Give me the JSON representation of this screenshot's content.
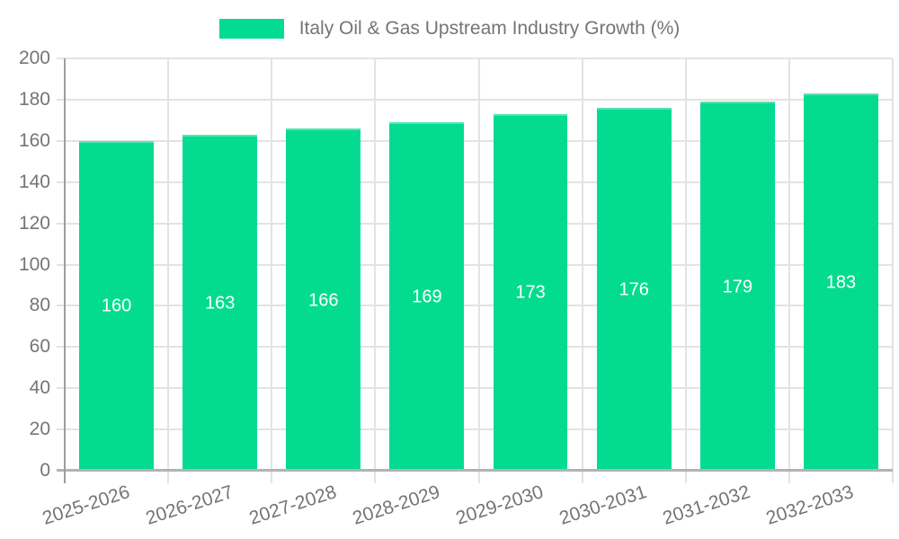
{
  "legend": {
    "label": "Italy Oil & Gas Upstream Industry Growth (%)"
  },
  "colors": {
    "bar": "#03DC90",
    "bar_top_edge": "#55E6AF",
    "grid": "#E3E3E3",
    "axis": "#9E9E9E",
    "baseline": "#B3B3B3",
    "text": "#757575",
    "value_label": "#FFFFFF"
  },
  "chart_data": {
    "type": "bar",
    "title": "Italy Oil & Gas Upstream Industry Growth (%)",
    "categories": [
      "2025-2026",
      "2026-2027",
      "2027-2028",
      "2028-2029",
      "2029-2030",
      "2030-2031",
      "2031-2032",
      "2032-2033"
    ],
    "values": [
      160,
      163,
      166,
      169,
      173,
      176,
      179,
      183
    ],
    "value_labels": [
      "160",
      "163",
      "166",
      "169",
      "173",
      "176",
      "179",
      "183"
    ],
    "xlabel": "",
    "ylabel": "",
    "ylim": [
      0,
      200
    ],
    "ytick_interval": 20,
    "yticks": [
      0,
      20,
      40,
      60,
      80,
      100,
      120,
      140,
      160,
      180,
      200
    ],
    "grid": true,
    "legend_position": "top-center",
    "bar_color": "#03DC90",
    "value_label_position": "inside-center",
    "xtick_rotation_deg": -18
  }
}
